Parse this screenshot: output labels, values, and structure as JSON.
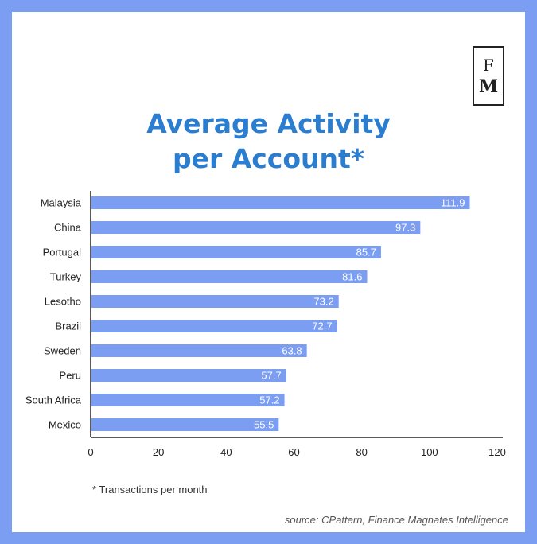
{
  "logo": {
    "line1": "F",
    "line2": "M"
  },
  "chart_data": {
    "type": "bar",
    "orientation": "horizontal",
    "title": "Average Activity\nper Account*",
    "categories": [
      "Malaysia",
      "China",
      "Portugal",
      "Turkey",
      "Lesotho",
      "Brazil",
      "Sweden",
      "Peru",
      "South Africa",
      "Mexico"
    ],
    "values": [
      111.9,
      97.3,
      85.7,
      81.6,
      73.2,
      72.7,
      63.8,
      57.7,
      57.2,
      55.5
    ],
    "value_labels": [
      "111.9",
      "97.3",
      "85.7",
      "81.6",
      "73.2",
      "72.7",
      "63.8",
      "57.7",
      "57.2",
      "55.5"
    ],
    "xlim": [
      0,
      120
    ],
    "xticks": [
      0,
      20,
      40,
      60,
      80,
      100,
      120
    ],
    "xtick_labels": [
      "0",
      "20",
      "40",
      "60",
      "80",
      "100",
      "120"
    ],
    "grid": false,
    "bar_color": "#7b9df2",
    "title_color": "#2b7dd0"
  },
  "footnote": "* Transactions per month",
  "source": "source: CPattern, Finance Magnates Intelligence",
  "colors": {
    "frame": "#7b9df2",
    "background": "#ffffff"
  }
}
